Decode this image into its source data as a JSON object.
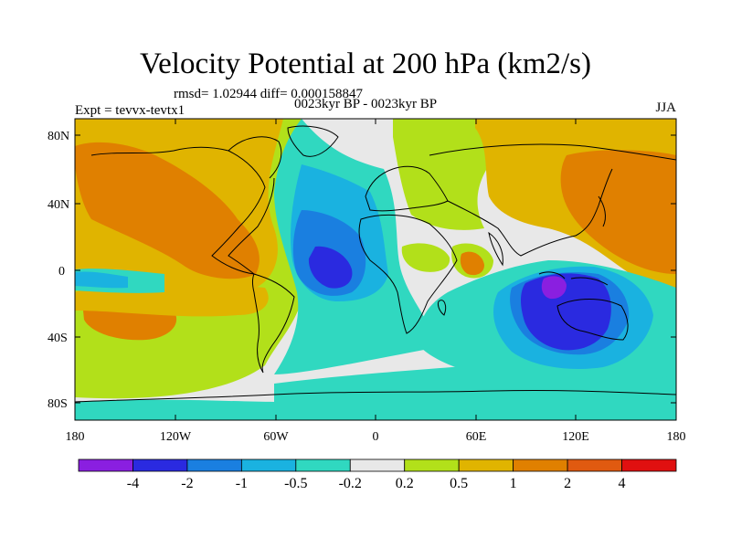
{
  "title": "Velocity Potential at 200 hPa (km2/s)",
  "stats": "rmsd= 1.02944 diff= 0.000158847",
  "period": "0023kyr BP - 0023kyr BP",
  "experiment": "Expt = tevvx-tevtx1",
  "season": "JJA",
  "lat_labels": [
    "80N",
    "40N",
    "0",
    "40S",
    "80S"
  ],
  "lon_labels": [
    "180",
    "120W",
    "60W",
    "0",
    "60E",
    "120E",
    "180"
  ],
  "colorbar": {
    "colors": [
      "#8a1fe0",
      "#2a2ae0",
      "#1a7fe0",
      "#1ab2e0",
      "#30d8c0",
      "#e8e8e8",
      "#b2e01a",
      "#e0b400",
      "#e08000",
      "#e05a10",
      "#e01010"
    ],
    "labels": [
      "-4",
      "-2",
      "-1",
      "-0.5",
      "-0.2",
      "0.2",
      "0.5",
      "1",
      "2",
      "4"
    ]
  }
}
